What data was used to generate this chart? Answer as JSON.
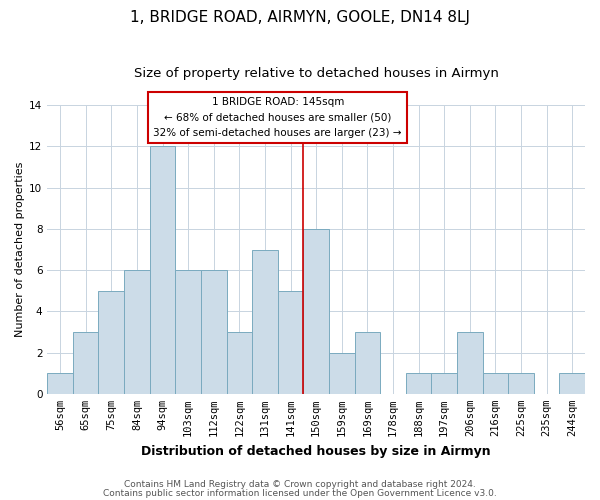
{
  "title": "1, BRIDGE ROAD, AIRMYN, GOOLE, DN14 8LJ",
  "subtitle": "Size of property relative to detached houses in Airmyn",
  "xlabel": "Distribution of detached houses by size in Airmyn",
  "ylabel": "Number of detached properties",
  "bar_labels": [
    "56sqm",
    "65sqm",
    "75sqm",
    "84sqm",
    "94sqm",
    "103sqm",
    "112sqm",
    "122sqm",
    "131sqm",
    "141sqm",
    "150sqm",
    "159sqm",
    "169sqm",
    "178sqm",
    "188sqm",
    "197sqm",
    "206sqm",
    "216sqm",
    "225sqm",
    "235sqm",
    "244sqm"
  ],
  "bar_values": [
    1,
    3,
    5,
    6,
    12,
    6,
    6,
    3,
    7,
    5,
    8,
    2,
    3,
    0,
    1,
    1,
    3,
    1,
    1,
    0,
    1
  ],
  "bar_color": "#ccdce8",
  "bar_edge_color": "#7aaabf",
  "grid_color": "#c8d4e0",
  "background_color": "#ffffff",
  "vline_x": 9.5,
  "vline_color": "#cc0000",
  "annotation_title": "1 BRIDGE ROAD: 145sqm",
  "annotation_line1": "← 68% of detached houses are smaller (50)",
  "annotation_line2": "32% of semi-detached houses are larger (23) →",
  "annotation_box_color": "#ffffff",
  "annotation_box_edge": "#cc0000",
  "footer1": "Contains HM Land Registry data © Crown copyright and database right 2024.",
  "footer2": "Contains public sector information licensed under the Open Government Licence v3.0.",
  "ylim": [
    0,
    14
  ],
  "yticks": [
    0,
    2,
    4,
    6,
    8,
    10,
    12,
    14
  ],
  "title_fontsize": 11,
  "subtitle_fontsize": 9.5,
  "xlabel_fontsize": 9,
  "ylabel_fontsize": 8,
  "tick_fontsize": 7.5,
  "annotation_fontsize": 7.5,
  "footer_fontsize": 6.5
}
